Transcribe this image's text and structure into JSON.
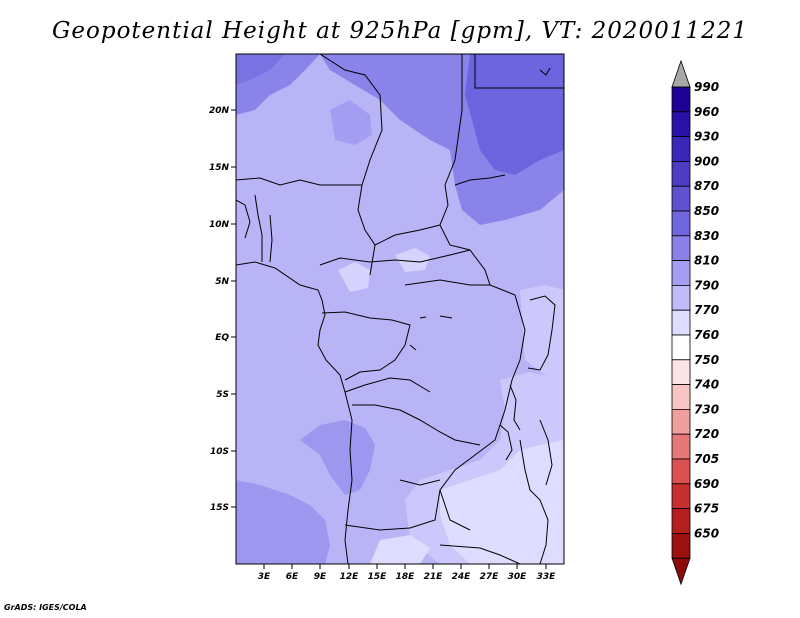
{
  "title": "Geopotential Height at 925hPa [gpm], VT: 2020011221",
  "credit": "GrADS: IGES/COLA",
  "map": {
    "lat_ticks": [
      "20N",
      "15N",
      "10N",
      "5N",
      "EQ",
      "5S",
      "10S",
      "15S"
    ],
    "lon_ticks": [
      "3E",
      "6E",
      "9E",
      "12E",
      "15E",
      "18E",
      "21E",
      "24E",
      "27E",
      "30E",
      "33E"
    ]
  },
  "colorbar": {
    "levels": [
      "990",
      "960",
      "930",
      "900",
      "870",
      "850",
      "830",
      "810",
      "790",
      "770",
      "760",
      "750",
      "740",
      "730",
      "720",
      "705",
      "690",
      "675",
      "650"
    ],
    "colors": [
      "#1e0096",
      "#2a10a8",
      "#3a26b8",
      "#4c3cc6",
      "#5e52d2",
      "#6e66dc",
      "#8882e8",
      "#a49ef2",
      "#c0bcfa",
      "#dedcff",
      "#ffffff",
      "#fde4e4",
      "#f8c4c4",
      "#f09e9e",
      "#e67878",
      "#dc5050",
      "#c83030",
      "#b41e1e",
      "#9c1010"
    ]
  }
}
